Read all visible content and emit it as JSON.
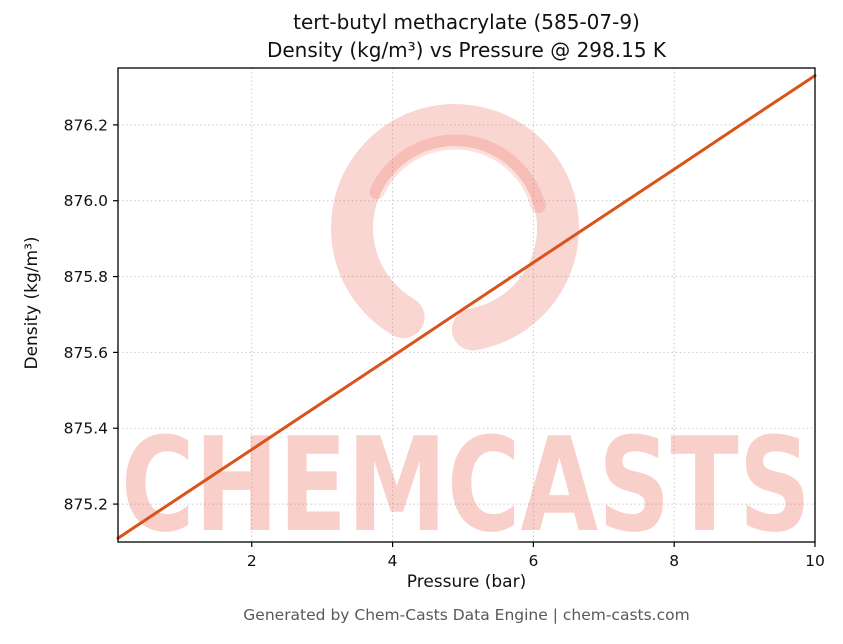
{
  "chart_data": {
    "type": "line",
    "title_line1": "tert-butyl methacrylate (585-07-9)",
    "title_line2": "Density (kg/m³) vs Pressure @ 298.15 K",
    "title": "tert-butyl methacrylate (585-07-9) Density (kg/m³) vs Pressure @ 298.15 K",
    "xlabel": "Pressure (bar)",
    "ylabel": "Density (kg/m³)",
    "xlim": [
      0.1,
      10
    ],
    "ylim": [
      875.1,
      876.35
    ],
    "xticks": [
      2,
      4,
      6,
      8,
      10
    ],
    "yticks": [
      875.2,
      875.4,
      875.6,
      875.8,
      876.0,
      876.2
    ],
    "grid": true,
    "legend_position": "none",
    "series": [
      {
        "name": "Density @ 298.15 K",
        "color": "#d9531a",
        "x": [
          0.1,
          1,
          2,
          3,
          4,
          5,
          6,
          7,
          8,
          9,
          10
        ],
        "y": [
          875.11,
          875.221,
          875.344,
          875.467,
          875.59,
          875.714,
          875.837,
          875.96,
          876.083,
          876.207,
          876.33
        ]
      }
    ]
  },
  "watermark": {
    "text": "CHEMCASTS",
    "color": "#e8543f",
    "text_opacity": 0.28,
    "logo": "brush-ring-c",
    "logo_opacity": 0.24
  },
  "footer": {
    "text": "Generated by Chem-Casts Data Engine | chem-casts.com"
  }
}
